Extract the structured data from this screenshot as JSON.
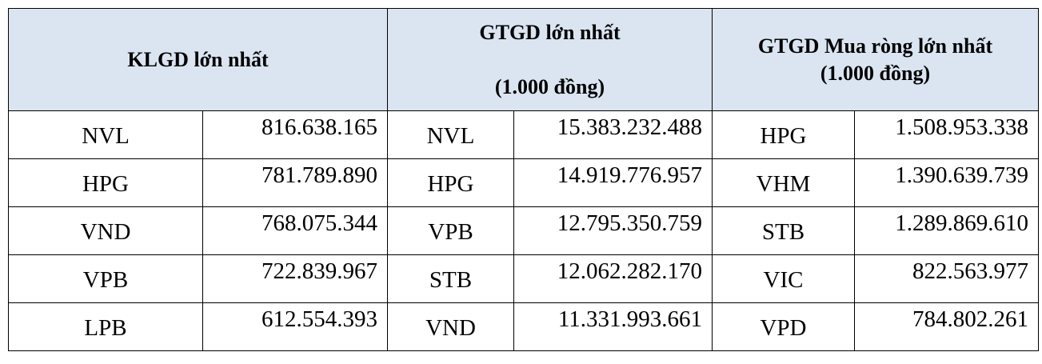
{
  "table": {
    "headers": [
      {
        "lines": [
          "KLGD lớn nhất"
        ]
      },
      {
        "lines": [
          "GTGD lớn nhất",
          "(1.000 đồng)"
        ]
      },
      {
        "lines": [
          "GTGD Mua ròng lớn nhất",
          "(1.000 đồng)"
        ]
      }
    ],
    "rows": [
      [
        "NVL",
        "816.638.165",
        "NVL",
        "15.383.232.488",
        "HPG",
        "1.508.953.338"
      ],
      [
        "HPG",
        "781.789.890",
        "HPG",
        "14.919.776.957",
        "VHM",
        "1.390.639.739"
      ],
      [
        "VND",
        "768.075.344",
        "VPB",
        "12.795.350.759",
        "STB",
        "1.289.869.610"
      ],
      [
        "VPB",
        "722.839.967",
        "STB",
        "12.062.282.170",
        "VIC",
        "822.563.977"
      ],
      [
        "LPB",
        "612.554.393",
        "VND",
        "11.331.993.661",
        "VPD",
        "784.802.261"
      ]
    ]
  }
}
